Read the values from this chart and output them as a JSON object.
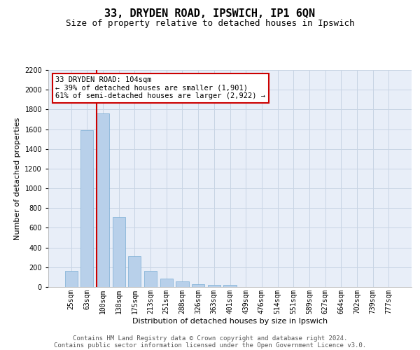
{
  "title": "33, DRYDEN ROAD, IPSWICH, IP1 6QN",
  "subtitle": "Size of property relative to detached houses in Ipswich",
  "xlabel": "Distribution of detached houses by size in Ipswich",
  "ylabel": "Number of detached properties",
  "categories": [
    "25sqm",
    "63sqm",
    "100sqm",
    "138sqm",
    "175sqm",
    "213sqm",
    "251sqm",
    "288sqm",
    "326sqm",
    "363sqm",
    "401sqm",
    "439sqm",
    "476sqm",
    "514sqm",
    "551sqm",
    "589sqm",
    "627sqm",
    "664sqm",
    "702sqm",
    "739sqm",
    "777sqm"
  ],
  "values": [
    160,
    1590,
    1760,
    710,
    315,
    160,
    85,
    55,
    30,
    20,
    20,
    0,
    0,
    0,
    0,
    0,
    0,
    0,
    0,
    0,
    0
  ],
  "bar_color": "#b8d0ea",
  "bar_edge_color": "#7aadd4",
  "redline_color": "#cc0000",
  "annotation_text": "33 DRYDEN ROAD: 104sqm\n← 39% of detached houses are smaller (1,901)\n61% of semi-detached houses are larger (2,922) →",
  "annotation_box_color": "#ffffff",
  "annotation_box_edge": "#cc0000",
  "grid_color": "#c8d4e4",
  "background_color": "#e8eef8",
  "ylim": [
    0,
    2200
  ],
  "yticks": [
    0,
    200,
    400,
    600,
    800,
    1000,
    1200,
    1400,
    1600,
    1800,
    2000,
    2200
  ],
  "footer1": "Contains HM Land Registry data © Crown copyright and database right 2024.",
  "footer2": "Contains public sector information licensed under the Open Government Licence v3.0.",
  "title_fontsize": 11,
  "subtitle_fontsize": 9,
  "label_fontsize": 8,
  "tick_fontsize": 7,
  "annotation_fontsize": 7.5,
  "footer_fontsize": 6.5
}
